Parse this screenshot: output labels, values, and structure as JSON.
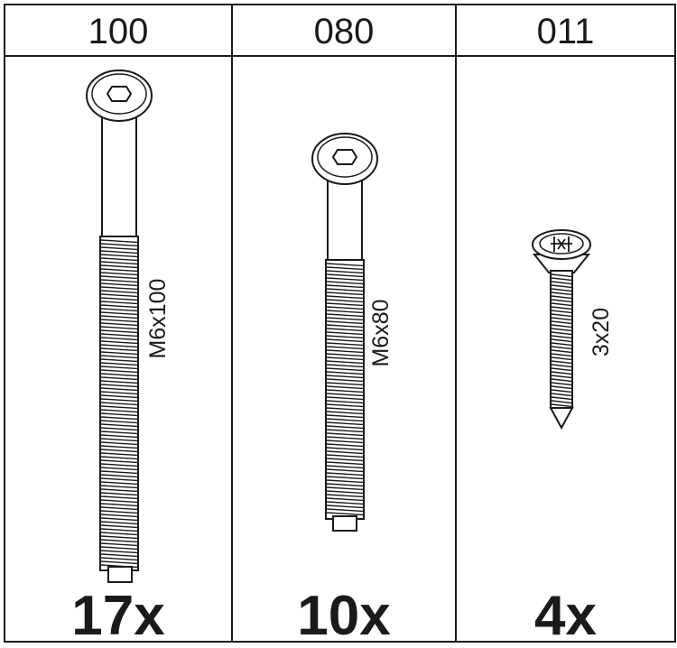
{
  "columns": [
    {
      "part_code": "100",
      "size": "M6x100",
      "quantity": "17x"
    },
    {
      "part_code": "080",
      "size": "M6x80",
      "quantity": "10x"
    },
    {
      "part_code": "011",
      "size": "3x20",
      "quantity": "4x"
    }
  ]
}
